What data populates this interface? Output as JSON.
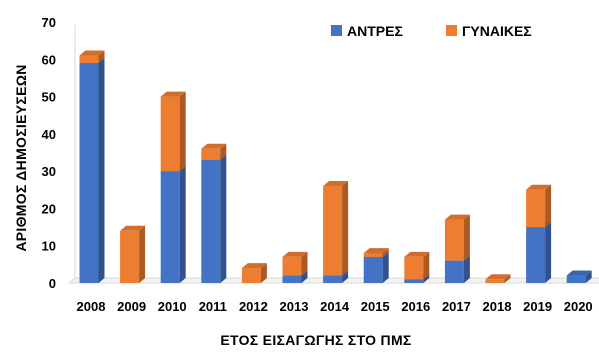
{
  "chart_data": {
    "type": "bar",
    "stacked": true,
    "style": "3d-columns",
    "categories": [
      "2008",
      "2009",
      "2010",
      "2011",
      "2012",
      "2013",
      "2014",
      "2015",
      "2016",
      "2017",
      "2018",
      "2019",
      "2020"
    ],
    "series": [
      {
        "name": "ΑΝΤΡΕΣ",
        "color": "#4472C4",
        "values": [
          59,
          0,
          30,
          33,
          0,
          2,
          2,
          7,
          1,
          6,
          0,
          15,
          2
        ]
      },
      {
        "name": "ΓΥΝΑΙΚΕΣ",
        "color": "#ED7D31",
        "values": [
          2,
          14,
          20,
          3,
          4,
          5,
          24,
          1,
          6,
          11,
          1,
          10,
          0
        ]
      }
    ],
    "xlabel": "ΕΤΟΣ  ΕΙΣΑΓΩΓΗΣ ΣΤΟ ΠΜΣ",
    "ylabel": "ΑΡΙΘΜΟΣ ΔΗΜΟΣΙΕΥΣΕΩΝ",
    "ylim": [
      0,
      70
    ],
    "yticks": [
      0,
      10,
      20,
      30,
      40,
      50,
      60,
      70
    ],
    "grid": false,
    "legend_position": "top-right"
  }
}
